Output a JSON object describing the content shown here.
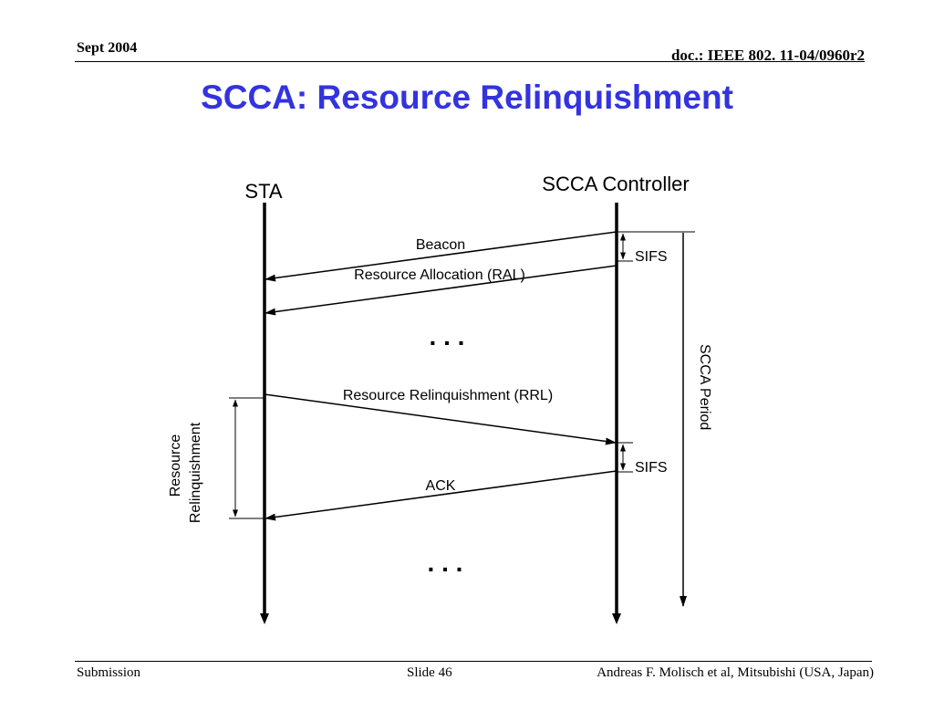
{
  "header": {
    "date": "Sept 2004",
    "doc_id": "doc.: IEEE 802. 11-04/0960r2"
  },
  "slide": {
    "title": "SCCA: Resource Relinquishment"
  },
  "diagram": {
    "entities": {
      "sta": "STA",
      "controller": "SCCA Controller"
    },
    "messages": {
      "beacon": "Beacon",
      "ral": "Resource Allocation (RAL)",
      "rrl": "Resource Relinquishment (RRL)",
      "ack": "ACK"
    },
    "intervals": {
      "sifs_top": "SIFS",
      "sifs_bottom": "SIFS",
      "period": "SCCA Period",
      "relinquish_line1": "Resource",
      "relinquish_line2": "Relinquishment"
    },
    "ellipsis_top": ". . .",
    "ellipsis_bottom": ". . ."
  },
  "footer": {
    "left": "Submission",
    "center": "Slide 46",
    "right": "Andreas F. Molisch et al, Mitsubishi (USA, Japan)"
  }
}
